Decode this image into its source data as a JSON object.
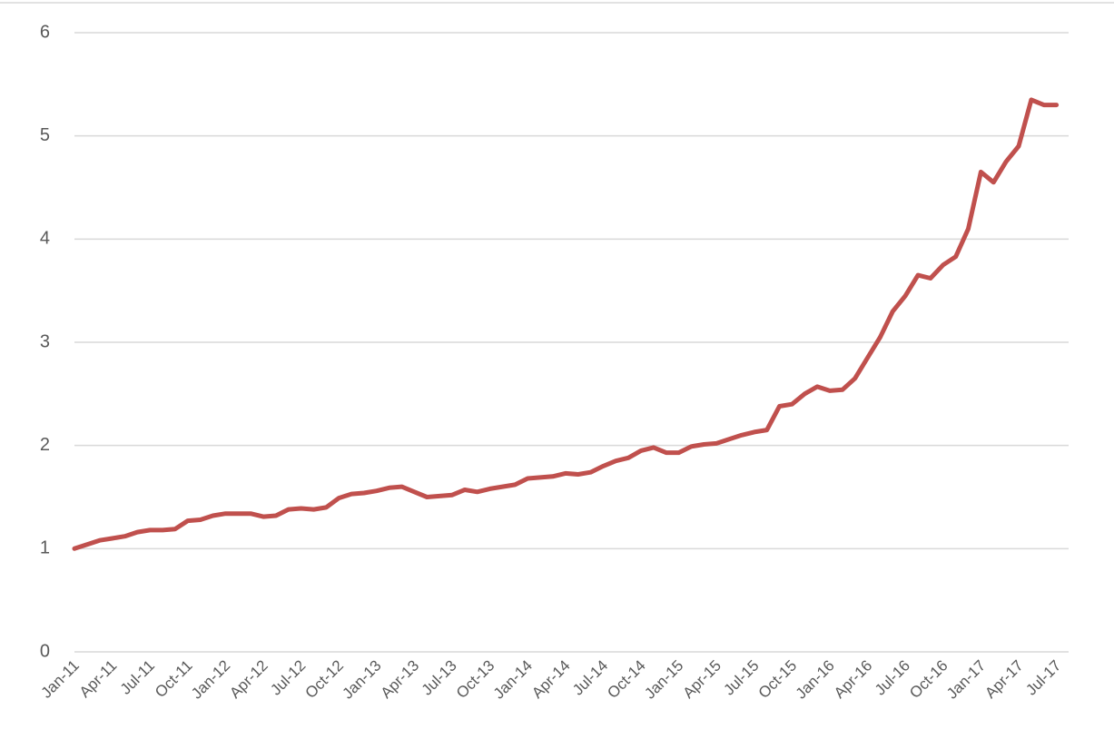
{
  "chart_data": {
    "type": "line",
    "x": [
      "Jan-11",
      "Feb-11",
      "Mar-11",
      "Apr-11",
      "May-11",
      "Jun-11",
      "Jul-11",
      "Aug-11",
      "Sep-11",
      "Oct-11",
      "Nov-11",
      "Dec-11",
      "Jan-12",
      "Feb-12",
      "Mar-12",
      "Apr-12",
      "May-12",
      "Jun-12",
      "Jul-12",
      "Aug-12",
      "Sep-12",
      "Oct-12",
      "Nov-12",
      "Dec-12",
      "Jan-13",
      "Feb-13",
      "Mar-13",
      "Apr-13",
      "May-13",
      "Jun-13",
      "Jul-13",
      "Aug-13",
      "Sep-13",
      "Oct-13",
      "Nov-13",
      "Dec-13",
      "Jan-14",
      "Feb-14",
      "Mar-14",
      "Apr-14",
      "May-14",
      "Jun-14",
      "Jul-14",
      "Aug-14",
      "Sep-14",
      "Oct-14",
      "Nov-14",
      "Dec-14",
      "Jan-15",
      "Feb-15",
      "Mar-15",
      "Apr-15",
      "May-15",
      "Jun-15",
      "Jul-15",
      "Aug-15",
      "Sep-15",
      "Oct-15",
      "Nov-15",
      "Dec-15",
      "Jan-16",
      "Feb-16",
      "Mar-16",
      "Apr-16",
      "May-16",
      "Jun-16",
      "Jul-16",
      "Aug-16",
      "Sep-16",
      "Oct-16",
      "Nov-16",
      "Dec-16",
      "Jan-17",
      "Feb-17",
      "Mar-17",
      "Apr-17",
      "May-17",
      "Jun-17",
      "Jul-17"
    ],
    "series": [
      {
        "color": "#c0504d",
        "values": [
          1.0,
          1.04,
          1.08,
          1.1,
          1.12,
          1.16,
          1.18,
          1.18,
          1.19,
          1.27,
          1.28,
          1.32,
          1.34,
          1.34,
          1.34,
          1.31,
          1.32,
          1.38,
          1.39,
          1.38,
          1.4,
          1.49,
          1.53,
          1.54,
          1.56,
          1.59,
          1.6,
          1.55,
          1.5,
          1.51,
          1.52,
          1.57,
          1.55,
          1.58,
          1.6,
          1.62,
          1.68,
          1.69,
          1.7,
          1.73,
          1.72,
          1.74,
          1.8,
          1.85,
          1.88,
          1.95,
          1.98,
          1.93,
          1.93,
          1.99,
          2.01,
          2.02,
          2.06,
          2.1,
          2.13,
          2.15,
          2.38,
          2.4,
          2.5,
          2.57,
          2.53,
          2.54,
          2.65,
          2.85,
          3.05,
          3.3,
          3.45,
          3.65,
          3.62,
          3.75,
          3.83,
          4.1,
          4.65,
          4.55,
          4.75,
          4.9,
          5.35,
          5.3,
          5.3
        ]
      }
    ],
    "ylim": [
      0,
      6
    ],
    "yticks": [
      0,
      1,
      2,
      3,
      4,
      5,
      6
    ],
    "grid": true
  }
}
